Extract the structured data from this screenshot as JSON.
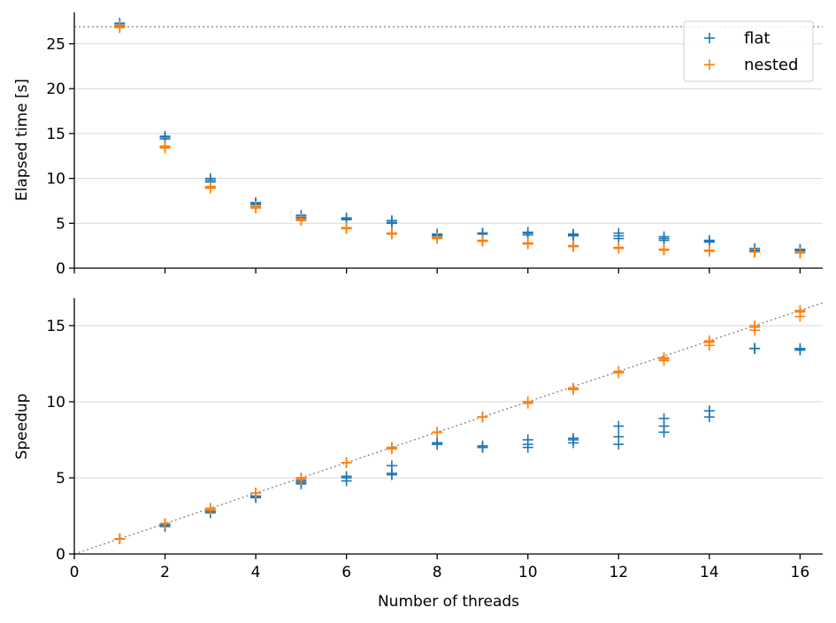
{
  "colors": {
    "flat": "#1f77b4",
    "nested": "#ff7f0e",
    "grid": "#d9d9d9",
    "reference": "#808080",
    "axis": "#000000"
  },
  "chart_data": [
    {
      "type": "scatter",
      "panel": "top",
      "title": "",
      "xlabel": "",
      "ylabel": "Elapsed time [s]",
      "xlim": [
        0,
        16.5
      ],
      "ylim": [
        0,
        28.5
      ],
      "yticks": [
        0,
        5,
        10,
        15,
        20,
        25
      ],
      "xtick_labels_visible": false,
      "grid": "horizontal",
      "legend": {
        "placement": "top-right",
        "entries": [
          "flat",
          "nested"
        ]
      },
      "reference_line": {
        "kind": "horizontal",
        "y": 26.9,
        "style": "dotted"
      },
      "series": [
        {
          "name": "flat",
          "marker": "+",
          "points": [
            [
              1,
              27.3
            ],
            [
              1,
              27.0
            ],
            [
              1,
              27.1
            ],
            [
              2,
              14.7
            ],
            [
              2,
              14.4
            ],
            [
              2,
              14.6
            ],
            [
              3,
              10.0
            ],
            [
              3,
              9.6
            ],
            [
              3,
              9.8
            ],
            [
              4,
              7.3
            ],
            [
              4,
              7.1
            ],
            [
              4,
              7.2
            ],
            [
              5,
              5.9
            ],
            [
              5,
              5.6
            ],
            [
              5,
              5.7
            ],
            [
              6,
              5.6
            ],
            [
              6,
              5.4
            ],
            [
              6,
              5.5
            ],
            [
              7,
              5.3
            ],
            [
              7,
              5.0
            ],
            [
              7,
              5.1
            ],
            [
              8,
              3.8
            ],
            [
              8,
              3.6
            ],
            [
              8,
              3.7
            ],
            [
              9,
              3.9
            ],
            [
              9,
              3.8
            ],
            [
              9,
              3.9
            ],
            [
              10,
              4.0
            ],
            [
              10,
              3.7
            ],
            [
              10,
              3.9
            ],
            [
              11,
              3.8
            ],
            [
              11,
              3.6
            ],
            [
              11,
              3.7
            ],
            [
              12,
              3.9
            ],
            [
              12,
              3.3
            ],
            [
              12,
              3.6
            ],
            [
              13,
              3.5
            ],
            [
              13,
              3.1
            ],
            [
              13,
              3.3
            ],
            [
              14,
              3.1
            ],
            [
              14,
              2.9
            ],
            [
              14,
              3.0
            ],
            [
              15,
              2.2
            ],
            [
              15,
              1.9
            ],
            [
              15,
              2.0
            ],
            [
              16,
              2.1
            ],
            [
              16,
              1.9
            ],
            [
              16,
              2.0
            ]
          ]
        },
        {
          "name": "nested",
          "marker": "+",
          "points": [
            [
              1,
              26.9
            ],
            [
              1,
              26.8
            ],
            [
              1,
              27.0
            ],
            [
              2,
              13.5
            ],
            [
              2,
              13.4
            ],
            [
              2,
              13.6
            ],
            [
              3,
              9.0
            ],
            [
              3,
              8.9
            ],
            [
              3,
              9.1
            ],
            [
              4,
              6.8
            ],
            [
              4,
              6.7
            ],
            [
              4,
              6.9
            ],
            [
              5,
              5.4
            ],
            [
              5,
              5.3
            ],
            [
              5,
              5.5
            ],
            [
              6,
              4.5
            ],
            [
              6,
              4.4
            ],
            [
              6,
              4.5
            ],
            [
              7,
              3.9
            ],
            [
              7,
              3.8
            ],
            [
              7,
              3.9
            ],
            [
              8,
              3.4
            ],
            [
              8,
              3.3
            ],
            [
              8,
              3.4
            ],
            [
              9,
              3.0
            ],
            [
              9,
              3.0
            ],
            [
              9,
              3.1
            ],
            [
              10,
              2.7
            ],
            [
              10,
              2.7
            ],
            [
              10,
              2.8
            ],
            [
              11,
              2.5
            ],
            [
              11,
              2.4
            ],
            [
              11,
              2.5
            ],
            [
              12,
              2.3
            ],
            [
              12,
              2.2
            ],
            [
              12,
              2.3
            ],
            [
              13,
              2.1
            ],
            [
              13,
              2.1
            ],
            [
              13,
              2.0
            ],
            [
              14,
              2.0
            ],
            [
              14,
              1.9
            ],
            [
              14,
              1.9
            ],
            [
              15,
              1.8
            ],
            [
              15,
              1.8
            ],
            [
              15,
              1.8
            ],
            [
              16,
              1.7
            ],
            [
              16,
              1.7
            ],
            [
              16,
              1.7
            ]
          ]
        }
      ]
    },
    {
      "type": "scatter",
      "panel": "bottom",
      "title": "",
      "xlabel": "Number of threads",
      "ylabel": "Speedup",
      "xlim": [
        0,
        16.5
      ],
      "ylim": [
        0,
        16.8
      ],
      "xticks": [
        0,
        2,
        4,
        6,
        8,
        10,
        12,
        14,
        16
      ],
      "yticks": [
        0,
        5,
        10,
        15
      ],
      "grid": "horizontal",
      "reference_line": {
        "kind": "diagonal",
        "from": [
          0,
          0
        ],
        "to": [
          16.5,
          16.5
        ],
        "style": "dotted"
      },
      "series": [
        {
          "name": "flat",
          "marker": "+",
          "points": [
            [
              1,
              1.0
            ],
            [
              1,
              1.0
            ],
            [
              1,
              1.0
            ],
            [
              2,
              1.8
            ],
            [
              2,
              1.9
            ],
            [
              2,
              1.9
            ],
            [
              3,
              2.7
            ],
            [
              3,
              2.8
            ],
            [
              3,
              2.8
            ],
            [
              4,
              3.7
            ],
            [
              4,
              3.8
            ],
            [
              4,
              3.8
            ],
            [
              5,
              4.6
            ],
            [
              5,
              4.8
            ],
            [
              5,
              4.7
            ],
            [
              6,
              4.8
            ],
            [
              6,
              5.1
            ],
            [
              6,
              5.0
            ],
            [
              7,
              5.2
            ],
            [
              7,
              5.3
            ],
            [
              7,
              5.8
            ],
            [
              8,
              7.2
            ],
            [
              8,
              7.3
            ],
            [
              8,
              7.3
            ],
            [
              9,
              7.0
            ],
            [
              9,
              7.1
            ],
            [
              9,
              7.0
            ],
            [
              10,
              7.0
            ],
            [
              10,
              7.2
            ],
            [
              10,
              7.5
            ],
            [
              11,
              7.3
            ],
            [
              11,
              7.5
            ],
            [
              11,
              7.6
            ],
            [
              12,
              7.2
            ],
            [
              12,
              7.7
            ],
            [
              12,
              8.4
            ],
            [
              13,
              8.0
            ],
            [
              13,
              8.4
            ],
            [
              13,
              8.9
            ],
            [
              14,
              9.0
            ],
            [
              14,
              9.4
            ],
            [
              14,
              9.4
            ],
            [
              15,
              13.5
            ],
            [
              15,
              13.5
            ],
            [
              15,
              13.5
            ],
            [
              16,
              13.4
            ],
            [
              16,
              13.4
            ],
            [
              16,
              13.5
            ]
          ]
        },
        {
          "name": "nested",
          "marker": "+",
          "points": [
            [
              1,
              1.0
            ],
            [
              1,
              1.0
            ],
            [
              1,
              1.0
            ],
            [
              2,
              2.0
            ],
            [
              2,
              2.0
            ],
            [
              2,
              2.0
            ],
            [
              3,
              3.0
            ],
            [
              3,
              2.9
            ],
            [
              3,
              3.0
            ],
            [
              4,
              4.0
            ],
            [
              4,
              4.0
            ],
            [
              4,
              4.0
            ],
            [
              5,
              5.0
            ],
            [
              5,
              4.9
            ],
            [
              5,
              5.0
            ],
            [
              6,
              6.0
            ],
            [
              6,
              6.0
            ],
            [
              6,
              6.0
            ],
            [
              7,
              7.0
            ],
            [
              7,
              6.9
            ],
            [
              7,
              7.0
            ],
            [
              8,
              8.0
            ],
            [
              8,
              8.0
            ],
            [
              8,
              8.0
            ],
            [
              9,
              9.0
            ],
            [
              9,
              9.0
            ],
            [
              9,
              9.0
            ],
            [
              10,
              10.0
            ],
            [
              10,
              9.9
            ],
            [
              10,
              10.0
            ],
            [
              11,
              10.9
            ],
            [
              11,
              10.8
            ],
            [
              11,
              10.9
            ],
            [
              12,
              11.9
            ],
            [
              12,
              11.9
            ],
            [
              12,
              12.0
            ],
            [
              13,
              12.7
            ],
            [
              13,
              12.8
            ],
            [
              13,
              12.9
            ],
            [
              14,
              13.7
            ],
            [
              14,
              13.9
            ],
            [
              14,
              14.0
            ],
            [
              15,
              14.7
            ],
            [
              15,
              14.9
            ],
            [
              15,
              15.0
            ],
            [
              16,
              15.6
            ],
            [
              16,
              15.9
            ],
            [
              16,
              16.0
            ]
          ]
        }
      ]
    }
  ]
}
